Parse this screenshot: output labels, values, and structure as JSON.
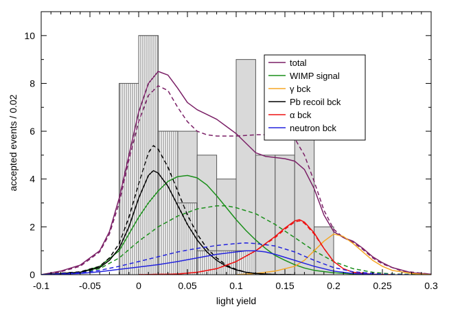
{
  "chart_data": {
    "type": "line",
    "title": "",
    "xlabel": "light yield",
    "ylabel": "accepted events / 0.02",
    "xlim": [
      -0.1,
      0.3
    ],
    "ylim": [
      0,
      11
    ],
    "xticks": [
      -0.1,
      -0.05,
      0,
      0.05,
      0.1,
      0.15,
      0.2,
      0.25,
      0.3
    ],
    "xtick_labels": [
      "-0.1",
      "-0.05",
      "0",
      "0.05",
      "0.1",
      "0.15",
      "0.2",
      "0.25",
      "0.3"
    ],
    "yticks": [
      0,
      2,
      4,
      6,
      8,
      10
    ],
    "ytick_labels": [
      "0",
      "2",
      "4",
      "6",
      "8",
      "10"
    ],
    "grid": false,
    "legend_position": "top-right",
    "histograms": [
      {
        "kind": "light-gray-filled",
        "bins": [
          {
            "x0": -0.02,
            "x1": 0.0,
            "y": 8
          },
          {
            "x0": 0.0,
            "x1": 0.02,
            "y": 10
          },
          {
            "x0": 0.02,
            "x1": 0.04,
            "y": 6
          },
          {
            "x0": 0.04,
            "x1": 0.06,
            "y": 6
          },
          {
            "x0": 0.06,
            "x1": 0.08,
            "y": 5
          },
          {
            "x0": 0.08,
            "x1": 0.1,
            "y": 4
          },
          {
            "x0": 0.1,
            "x1": 0.12,
            "y": 9
          },
          {
            "x0": 0.12,
            "x1": 0.14,
            "y": 5
          },
          {
            "x0": 0.14,
            "x1": 0.16,
            "y": 5
          },
          {
            "x0": 0.16,
            "x1": 0.18,
            "y": 6
          },
          {
            "x0": 0.18,
            "x1": 0.2,
            "y": 2
          }
        ]
      },
      {
        "kind": "hatched",
        "bins": [
          {
            "x0": -0.02,
            "x1": 0.0,
            "y": 8
          },
          {
            "x0": 0.0,
            "x1": 0.02,
            "y": 10
          },
          {
            "x0": 0.02,
            "x1": 0.04,
            "y": 6
          },
          {
            "x0": 0.04,
            "x1": 0.06,
            "y": 3
          },
          {
            "x0": 0.06,
            "x1": 0.08,
            "y": 1
          },
          {
            "x0": 0.08,
            "x1": 0.1,
            "y": 1
          },
          {
            "x0": 0.1,
            "x1": 0.12,
            "y": 1
          }
        ]
      }
    ],
    "series": [
      {
        "name": "total",
        "color": "#7a1f66",
        "dash": false,
        "points": [
          [
            -0.1,
            0
          ],
          [
            -0.08,
            0.15
          ],
          [
            -0.06,
            0.4
          ],
          [
            -0.04,
            1.0
          ],
          [
            -0.03,
            1.8
          ],
          [
            -0.02,
            3.2
          ],
          [
            -0.01,
            5.0
          ],
          [
            0.0,
            6.8
          ],
          [
            0.01,
            8.0
          ],
          [
            0.02,
            8.5
          ],
          [
            0.03,
            8.35
          ],
          [
            0.04,
            7.8
          ],
          [
            0.05,
            7.2
          ],
          [
            0.06,
            6.9
          ],
          [
            0.07,
            6.7
          ],
          [
            0.08,
            6.5
          ],
          [
            0.09,
            6.2
          ],
          [
            0.1,
            5.9
          ],
          [
            0.11,
            5.5
          ],
          [
            0.12,
            5.1
          ],
          [
            0.13,
            4.95
          ],
          [
            0.14,
            4.9
          ],
          [
            0.15,
            4.85
          ],
          [
            0.16,
            4.75
          ],
          [
            0.17,
            4.4
          ],
          [
            0.18,
            3.6
          ],
          [
            0.19,
            2.5
          ],
          [
            0.2,
            1.8
          ],
          [
            0.21,
            1.55
          ],
          [
            0.22,
            1.4
          ],
          [
            0.23,
            1.1
          ],
          [
            0.24,
            0.75
          ],
          [
            0.25,
            0.5
          ],
          [
            0.26,
            0.3
          ],
          [
            0.28,
            0.08
          ],
          [
            0.3,
            0.02
          ]
        ]
      },
      {
        "name": "total",
        "color": "#7a1f66",
        "dash": true,
        "points": [
          [
            -0.1,
            0
          ],
          [
            -0.08,
            0.12
          ],
          [
            -0.06,
            0.35
          ],
          [
            -0.04,
            0.95
          ],
          [
            -0.03,
            1.7
          ],
          [
            -0.02,
            3.0
          ],
          [
            -0.01,
            4.8
          ],
          [
            0.0,
            6.4
          ],
          [
            0.01,
            7.5
          ],
          [
            0.02,
            7.9
          ],
          [
            0.03,
            7.7
          ],
          [
            0.04,
            7.0
          ],
          [
            0.05,
            6.4
          ],
          [
            0.06,
            6.0
          ],
          [
            0.07,
            5.85
          ],
          [
            0.08,
            5.8
          ],
          [
            0.1,
            5.8
          ],
          [
            0.12,
            5.85
          ],
          [
            0.14,
            5.85
          ],
          [
            0.16,
            5.7
          ],
          [
            0.17,
            5.0
          ],
          [
            0.18,
            3.9
          ],
          [
            0.19,
            2.7
          ],
          [
            0.2,
            1.9
          ],
          [
            0.21,
            1.55
          ],
          [
            0.22,
            1.35
          ],
          [
            0.23,
            1.05
          ],
          [
            0.24,
            0.7
          ],
          [
            0.25,
            0.45
          ],
          [
            0.27,
            0.15
          ],
          [
            0.3,
            0.02
          ]
        ]
      },
      {
        "name": "WIMP signal",
        "color": "#1a8f1a",
        "dash": false,
        "points": [
          [
            -0.1,
            0
          ],
          [
            -0.06,
            0.1
          ],
          [
            -0.04,
            0.35
          ],
          [
            -0.02,
            1.0
          ],
          [
            -0.01,
            1.7
          ],
          [
            0.0,
            2.4
          ],
          [
            0.01,
            3.0
          ],
          [
            0.02,
            3.5
          ],
          [
            0.03,
            3.9
          ],
          [
            0.04,
            4.1
          ],
          [
            0.05,
            4.15
          ],
          [
            0.06,
            4.05
          ],
          [
            0.07,
            3.75
          ],
          [
            0.08,
            3.3
          ],
          [
            0.09,
            2.8
          ],
          [
            0.1,
            2.3
          ],
          [
            0.11,
            1.85
          ],
          [
            0.12,
            1.45
          ],
          [
            0.13,
            1.1
          ],
          [
            0.14,
            0.8
          ],
          [
            0.15,
            0.6
          ],
          [
            0.16,
            0.42
          ],
          [
            0.17,
            0.28
          ],
          [
            0.18,
            0.18
          ],
          [
            0.2,
            0.08
          ],
          [
            0.22,
            0.03
          ],
          [
            0.25,
            0
          ]
        ]
      },
      {
        "name": "WIMP signal",
        "color": "#1a8f1a",
        "dash": true,
        "points": [
          [
            -0.1,
            0
          ],
          [
            -0.06,
            0.08
          ],
          [
            -0.04,
            0.25
          ],
          [
            -0.02,
            0.7
          ],
          [
            0.0,
            1.4
          ],
          [
            0.02,
            2.0
          ],
          [
            0.04,
            2.45
          ],
          [
            0.06,
            2.75
          ],
          [
            0.08,
            2.88
          ],
          [
            0.09,
            2.88
          ],
          [
            0.1,
            2.8
          ],
          [
            0.12,
            2.55
          ],
          [
            0.14,
            2.1
          ],
          [
            0.16,
            1.55
          ],
          [
            0.18,
            1.0
          ],
          [
            0.2,
            0.55
          ],
          [
            0.22,
            0.25
          ],
          [
            0.24,
            0.1
          ],
          [
            0.26,
            0.03
          ],
          [
            0.3,
            0
          ]
        ]
      },
      {
        "name": "γ bck",
        "color": "#f5a623",
        "dash": false,
        "points": [
          [
            0.1,
            0
          ],
          [
            0.12,
            0.05
          ],
          [
            0.14,
            0.15
          ],
          [
            0.16,
            0.35
          ],
          [
            0.17,
            0.6
          ],
          [
            0.18,
            1.0
          ],
          [
            0.19,
            1.4
          ],
          [
            0.2,
            1.7
          ],
          [
            0.21,
            1.6
          ],
          [
            0.22,
            1.3
          ],
          [
            0.23,
            0.95
          ],
          [
            0.24,
            0.6
          ],
          [
            0.25,
            0.35
          ],
          [
            0.26,
            0.18
          ],
          [
            0.28,
            0.05
          ],
          [
            0.3,
            0
          ]
        ]
      },
      {
        "name": "Pb recoil bck",
        "color": "#000000",
        "dash": false,
        "points": [
          [
            -0.1,
            0
          ],
          [
            -0.06,
            0.1
          ],
          [
            -0.04,
            0.3
          ],
          [
            -0.03,
            0.6
          ],
          [
            -0.02,
            1.1
          ],
          [
            -0.01,
            2.0
          ],
          [
            0.0,
            3.2
          ],
          [
            0.01,
            4.15
          ],
          [
            0.015,
            4.35
          ],
          [
            0.02,
            4.25
          ],
          [
            0.03,
            3.7
          ],
          [
            0.04,
            2.9
          ],
          [
            0.05,
            2.1
          ],
          [
            0.06,
            1.45
          ],
          [
            0.07,
            0.95
          ],
          [
            0.08,
            0.6
          ],
          [
            0.09,
            0.35
          ],
          [
            0.1,
            0.2
          ],
          [
            0.11,
            0.1
          ],
          [
            0.12,
            0.05
          ],
          [
            0.14,
            0.01
          ],
          [
            0.16,
            0
          ]
        ]
      },
      {
        "name": "Pb recoil bck",
        "color": "#000000",
        "dash": true,
        "points": [
          [
            -0.1,
            0
          ],
          [
            -0.06,
            0.12
          ],
          [
            -0.04,
            0.35
          ],
          [
            -0.03,
            0.7
          ],
          [
            -0.02,
            1.3
          ],
          [
            -0.01,
            2.4
          ],
          [
            0.0,
            3.8
          ],
          [
            0.01,
            5.1
          ],
          [
            0.015,
            5.4
          ],
          [
            0.02,
            5.25
          ],
          [
            0.03,
            4.5
          ],
          [
            0.04,
            3.5
          ],
          [
            0.05,
            2.5
          ],
          [
            0.06,
            1.7
          ],
          [
            0.07,
            1.1
          ],
          [
            0.08,
            0.7
          ],
          [
            0.09,
            0.4
          ],
          [
            0.1,
            0.22
          ],
          [
            0.11,
            0.1
          ],
          [
            0.12,
            0.05
          ],
          [
            0.14,
            0.01
          ],
          [
            0.16,
            0
          ]
        ]
      },
      {
        "name": "α bck",
        "color": "#ee1111",
        "dash": false,
        "points": [
          [
            0.0,
            0
          ],
          [
            0.04,
            0.03
          ],
          [
            0.06,
            0.1
          ],
          [
            0.08,
            0.25
          ],
          [
            0.1,
            0.55
          ],
          [
            0.12,
            1.0
          ],
          [
            0.14,
            1.6
          ],
          [
            0.15,
            1.95
          ],
          [
            0.16,
            2.25
          ],
          [
            0.165,
            2.3
          ],
          [
            0.17,
            2.2
          ],
          [
            0.18,
            1.75
          ],
          [
            0.19,
            1.1
          ],
          [
            0.2,
            0.55
          ],
          [
            0.21,
            0.25
          ],
          [
            0.22,
            0.1
          ],
          [
            0.24,
            0.02
          ],
          [
            0.26,
            0
          ]
        ]
      },
      {
        "name": "α bck",
        "color": "#ee1111",
        "dash": true,
        "points": [
          [
            0.0,
            0
          ],
          [
            0.04,
            0.03
          ],
          [
            0.06,
            0.1
          ],
          [
            0.08,
            0.25
          ],
          [
            0.1,
            0.55
          ],
          [
            0.12,
            1.0
          ],
          [
            0.14,
            1.55
          ],
          [
            0.15,
            1.9
          ],
          [
            0.16,
            2.2
          ],
          [
            0.165,
            2.25
          ],
          [
            0.17,
            2.15
          ],
          [
            0.18,
            1.7
          ],
          [
            0.19,
            1.1
          ],
          [
            0.2,
            0.55
          ],
          [
            0.21,
            0.25
          ],
          [
            0.22,
            0.1
          ],
          [
            0.24,
            0.02
          ],
          [
            0.26,
            0
          ]
        ]
      },
      {
        "name": "neutron bck",
        "color": "#2222dd",
        "dash": false,
        "points": [
          [
            -0.1,
            0
          ],
          [
            -0.06,
            0.05
          ],
          [
            -0.04,
            0.12
          ],
          [
            -0.02,
            0.22
          ],
          [
            0.0,
            0.32
          ],
          [
            0.02,
            0.42
          ],
          [
            0.04,
            0.55
          ],
          [
            0.06,
            0.7
          ],
          [
            0.08,
            0.85
          ],
          [
            0.1,
            0.95
          ],
          [
            0.11,
            1.0
          ],
          [
            0.12,
            1.0
          ],
          [
            0.13,
            0.95
          ],
          [
            0.14,
            0.85
          ],
          [
            0.16,
            0.6
          ],
          [
            0.18,
            0.35
          ],
          [
            0.2,
            0.15
          ],
          [
            0.22,
            0.05
          ],
          [
            0.25,
            0
          ]
        ]
      },
      {
        "name": "neutron bck",
        "color": "#2222dd",
        "dash": true,
        "points": [
          [
            -0.1,
            0
          ],
          [
            -0.06,
            0.08
          ],
          [
            -0.04,
            0.18
          ],
          [
            -0.02,
            0.35
          ],
          [
            0.0,
            0.55
          ],
          [
            0.02,
            0.75
          ],
          [
            0.04,
            0.95
          ],
          [
            0.06,
            1.1
          ],
          [
            0.08,
            1.22
          ],
          [
            0.1,
            1.3
          ],
          [
            0.11,
            1.33
          ],
          [
            0.12,
            1.3
          ],
          [
            0.14,
            1.2
          ],
          [
            0.16,
            0.95
          ],
          [
            0.18,
            0.6
          ],
          [
            0.2,
            0.3
          ],
          [
            0.22,
            0.12
          ],
          [
            0.25,
            0.02
          ],
          [
            0.28,
            0
          ]
        ]
      }
    ],
    "legend": [
      {
        "label": "total",
        "color": "#7a1f66"
      },
      {
        "label": "WIMP signal",
        "color": "#1a8f1a"
      },
      {
        "label": "γ bck",
        "color": "#f5a623"
      },
      {
        "label": "Pb recoil bck",
        "color": "#000000"
      },
      {
        "label": "α bck",
        "color": "#ee1111"
      },
      {
        "label": "neutron bck",
        "color": "#2222dd"
      }
    ],
    "colors": {
      "hist_fill": "#d9d9d9",
      "hist_stroke": "#555555",
      "hatch": "#777777",
      "axis": "#000000"
    }
  }
}
